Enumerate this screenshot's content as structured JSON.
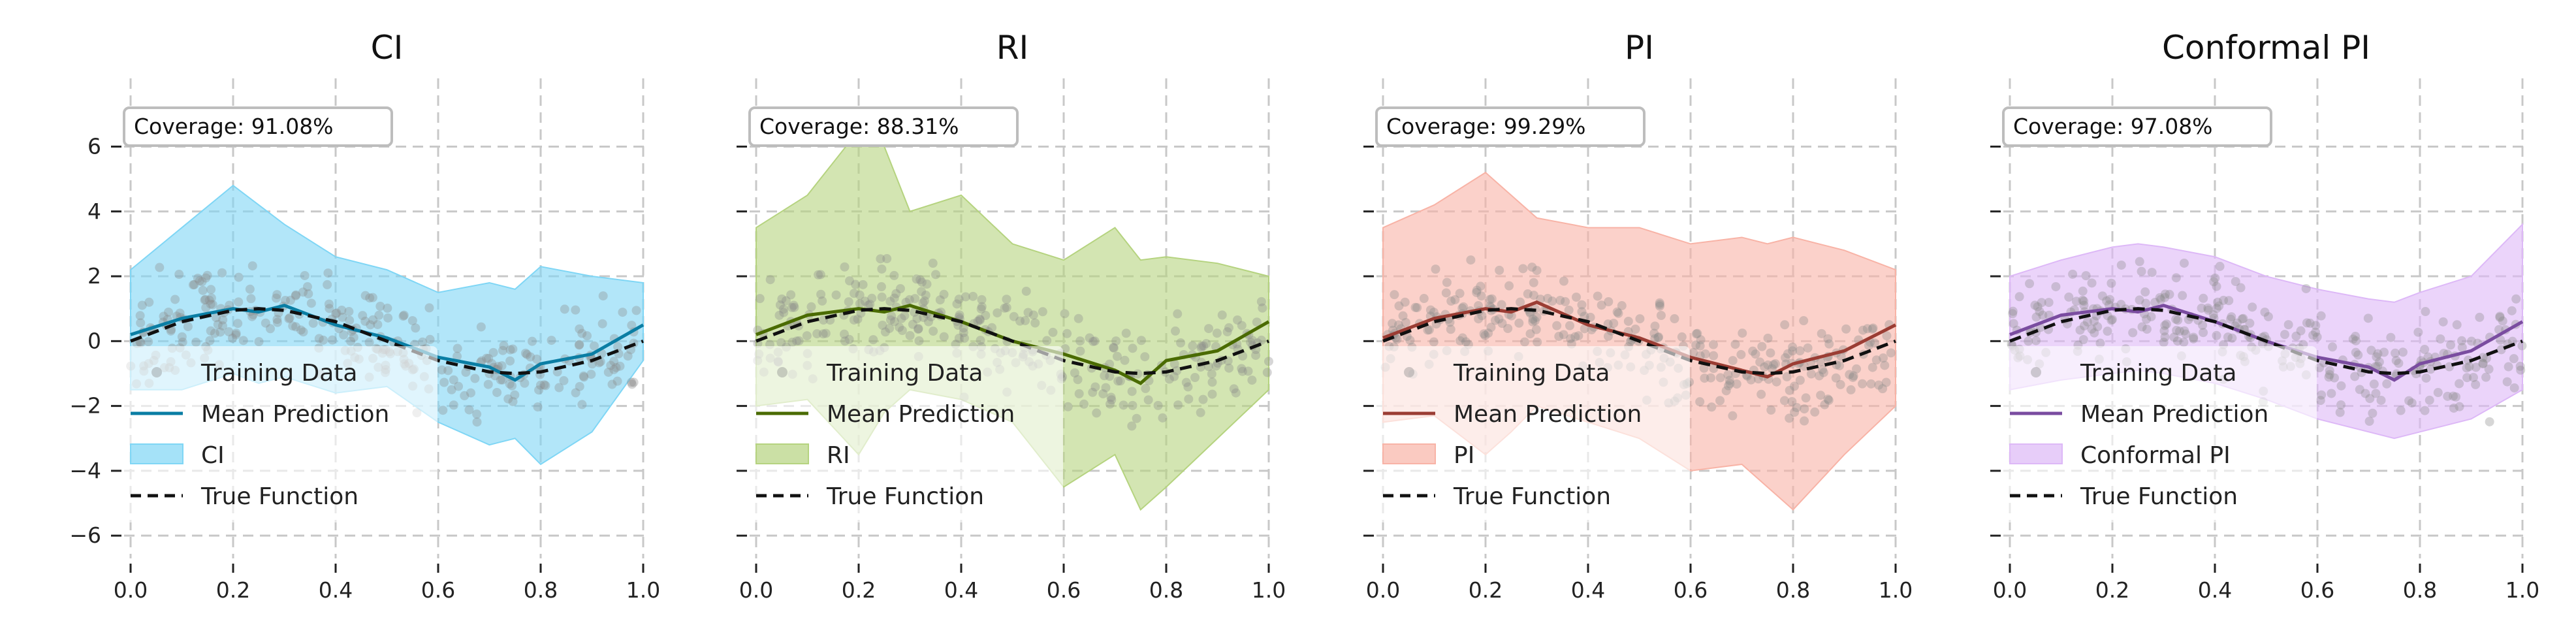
{
  "chart_data": [
    {
      "type": "line",
      "title": "CI",
      "coverage_label": "Coverage: 91.08%",
      "color": "#0a7ea4",
      "band_color": "#7fd6f5",
      "xlim": [
        0.0,
        1.0
      ],
      "ylim": [
        -6.5,
        7.5
      ],
      "xticks": [
        "0.0",
        "0.2",
        "0.4",
        "0.6",
        "0.8",
        "1.0"
      ],
      "yticks": [
        "6",
        "4",
        "2",
        "0",
        "−2",
        "−4",
        "−6"
      ],
      "x": [
        0.0,
        0.1,
        0.2,
        0.25,
        0.3,
        0.4,
        0.5,
        0.6,
        0.7,
        0.75,
        0.8,
        0.9,
        1.0
      ],
      "true_function": [
        0.0,
        0.6,
        0.95,
        1.0,
        0.95,
        0.6,
        0.0,
        -0.6,
        -0.95,
        -1.0,
        -0.95,
        -0.6,
        0.0
      ],
      "mean_prediction": [
        0.2,
        0.7,
        1.0,
        0.9,
        1.1,
        0.5,
        0.1,
        -0.5,
        -0.8,
        -1.2,
        -0.7,
        -0.4,
        0.5
      ],
      "band_lower": [
        -1.5,
        -1.5,
        -1.0,
        -1.3,
        -1.1,
        -1.6,
        -1.4,
        -2.5,
        -3.2,
        -3.0,
        -3.8,
        -2.8,
        -0.6
      ],
      "band_upper": [
        2.2,
        3.5,
        4.8,
        4.2,
        3.6,
        2.6,
        2.2,
        1.5,
        1.8,
        1.6,
        2.3,
        2.0,
        1.8
      ],
      "legend": [
        "Training Data",
        "Mean Prediction",
        "CI",
        "True Function"
      ]
    },
    {
      "type": "line",
      "title": "RI",
      "coverage_label": "Coverage: 88.31%",
      "color": "#4a6b00",
      "band_color": "#b5d37f",
      "xlim": [
        0.0,
        1.0
      ],
      "ylim": [
        -6.5,
        7.5
      ],
      "xticks": [
        "0.0",
        "0.2",
        "0.4",
        "0.6",
        "0.8",
        "1.0"
      ],
      "yticks": [
        "6",
        "4",
        "2",
        "0",
        "−2",
        "−4",
        "−6"
      ],
      "x": [
        0.0,
        0.1,
        0.2,
        0.25,
        0.3,
        0.4,
        0.5,
        0.6,
        0.7,
        0.75,
        0.8,
        0.9,
        1.0
      ],
      "true_function": [
        0.0,
        0.6,
        0.95,
        1.0,
        0.95,
        0.6,
        0.0,
        -0.6,
        -0.95,
        -1.0,
        -0.95,
        -0.6,
        0.0
      ],
      "mean_prediction": [
        0.2,
        0.8,
        1.0,
        0.9,
        1.1,
        0.6,
        0.0,
        -0.4,
        -0.9,
        -1.3,
        -0.6,
        -0.3,
        0.6
      ],
      "band_lower": [
        -2.0,
        -1.8,
        -3.5,
        -2.2,
        -1.5,
        -1.8,
        -2.5,
        -4.5,
        -3.5,
        -5.2,
        -4.5,
        -3.0,
        -1.5
      ],
      "band_upper": [
        3.5,
        4.5,
        6.5,
        6.0,
        4.0,
        4.5,
        3.0,
        2.5,
        3.5,
        2.5,
        2.6,
        2.4,
        2.0
      ],
      "legend": [
        "Training Data",
        "Mean Prediction",
        "RI",
        "True Function"
      ]
    },
    {
      "type": "line",
      "title": "PI",
      "coverage_label": "Coverage: 99.29%",
      "color": "#9b3d34",
      "band_color": "#f8b3a6",
      "xlim": [
        0.0,
        1.0
      ],
      "ylim": [
        -6.5,
        7.5
      ],
      "xticks": [
        "0.0",
        "0.2",
        "0.4",
        "0.6",
        "0.8",
        "1.0"
      ],
      "yticks": [
        "6",
        "4",
        "2",
        "0",
        "−2",
        "−4",
        "−6"
      ],
      "x": [
        0.0,
        0.1,
        0.2,
        0.25,
        0.3,
        0.4,
        0.5,
        0.6,
        0.7,
        0.75,
        0.8,
        0.9,
        1.0
      ],
      "true_function": [
        0.0,
        0.6,
        0.95,
        1.0,
        0.95,
        0.6,
        0.0,
        -0.6,
        -0.95,
        -1.0,
        -0.95,
        -0.6,
        0.0
      ],
      "mean_prediction": [
        0.1,
        0.7,
        1.0,
        0.9,
        1.2,
        0.5,
        0.1,
        -0.5,
        -0.9,
        -1.1,
        -0.7,
        -0.3,
        0.5
      ],
      "band_lower": [
        -2.5,
        -2.3,
        -3.5,
        -2.8,
        -2.0,
        -2.5,
        -3.0,
        -4.0,
        -3.8,
        -4.5,
        -5.2,
        -3.5,
        -2.0
      ],
      "band_upper": [
        3.5,
        4.2,
        5.2,
        4.5,
        3.8,
        3.5,
        3.5,
        3.0,
        3.2,
        3.0,
        3.2,
        2.8,
        2.2
      ],
      "legend": [
        "Training Data",
        "Mean Prediction",
        "PI",
        "True Function"
      ]
    },
    {
      "type": "line",
      "title": "Conformal PI",
      "coverage_label": "Coverage: 97.08%",
      "color": "#7a4ca0",
      "band_color": "#ddb8f7",
      "xlim": [
        0.0,
        1.0
      ],
      "ylim": [
        -6.5,
        7.5
      ],
      "xticks": [
        "0.0",
        "0.2",
        "0.4",
        "0.6",
        "0.8",
        "1.0"
      ],
      "yticks": [
        "6",
        "4",
        "2",
        "0",
        "−2",
        "−4",
        "−6"
      ],
      "x": [
        0.0,
        0.1,
        0.2,
        0.25,
        0.3,
        0.4,
        0.5,
        0.6,
        0.7,
        0.75,
        0.8,
        0.9,
        1.0
      ],
      "true_function": [
        0.0,
        0.6,
        0.95,
        1.0,
        0.95,
        0.6,
        0.0,
        -0.6,
        -0.95,
        -1.0,
        -0.95,
        -0.6,
        0.0
      ],
      "mean_prediction": [
        0.2,
        0.8,
        1.0,
        0.9,
        1.1,
        0.6,
        0.0,
        -0.5,
        -0.8,
        -1.2,
        -0.7,
        -0.3,
        0.6
      ],
      "band_lower": [
        -1.5,
        -1.2,
        -1.0,
        -0.9,
        -1.0,
        -1.3,
        -1.8,
        -2.4,
        -2.8,
        -3.0,
        -2.8,
        -2.4,
        -1.5
      ],
      "band_upper": [
        2.0,
        2.5,
        2.9,
        3.0,
        2.9,
        2.6,
        2.0,
        1.6,
        1.3,
        1.2,
        1.5,
        2.0,
        3.6
      ],
      "legend": [
        "Training Data",
        "Mean Prediction",
        "Conformal PI",
        "True Function"
      ]
    }
  ]
}
